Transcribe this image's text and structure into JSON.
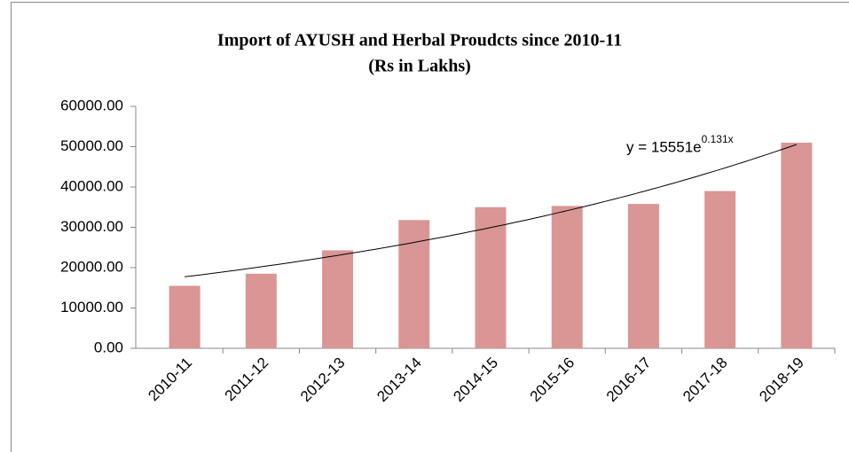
{
  "chart_data": {
    "type": "bar",
    "title": [
      "Import of AYUSH and Herbal Proudcts since 2010-11",
      "(Rs in Lakhs)"
    ],
    "categories": [
      "2010-11",
      "2011-12",
      "2012-13",
      "2013-14",
      "2014-15",
      "2015-16",
      "2016-17",
      "2017-18",
      "2018-19"
    ],
    "values": [
      15500,
      18500,
      24300,
      31800,
      35000,
      35300,
      35800,
      39000,
      51000
    ],
    "color": "#d99694",
    "ylim": [
      0,
      60000
    ],
    "yticks": [
      {
        "value": 0,
        "label": "0.00"
      },
      {
        "value": 10000,
        "label": "10000.00"
      },
      {
        "value": 20000,
        "label": "20000.00"
      },
      {
        "value": 30000,
        "label": "30000.00"
      },
      {
        "value": 40000,
        "label": "40000.00"
      },
      {
        "value": 50000,
        "label": "50000.00"
      },
      {
        "value": 60000,
        "label": "60000.00"
      }
    ],
    "trendline": {
      "equation": "y = 15551e",
      "exponent": "0.131x",
      "a": 15551,
      "b": 0.131
    }
  }
}
